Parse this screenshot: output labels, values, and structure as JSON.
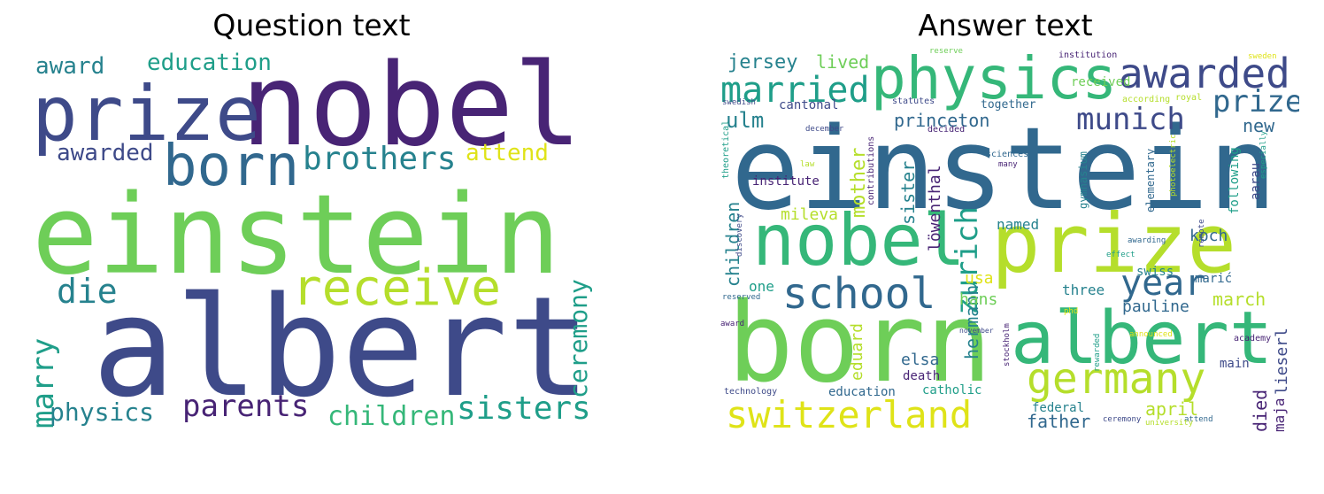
{
  "panels": {
    "question": {
      "title": "Question text"
    },
    "answer": {
      "title": "Answer text"
    }
  },
  "palette": {
    "dark_purple": "#482475",
    "blue_violet": "#3e4a89",
    "steel_blue": "#31688e",
    "teal": "#26828e",
    "sea_green": "#1f9e89",
    "green": "#35b779",
    "light_green": "#6ece58",
    "lime": "#b5de2b",
    "yellow": "#dfe318"
  },
  "question_words": [
    "nobel",
    "prize",
    "einstein",
    "albert",
    "born",
    "brothers",
    "receive",
    "die",
    "marry",
    "physics",
    "parents",
    "children",
    "sisters",
    "ceremony",
    "attend",
    "awarded",
    "award",
    "education"
  ],
  "answer_words": [
    "einstein",
    "born",
    "albert",
    "nobel",
    "prize",
    "physics",
    "awarded",
    "married",
    "school",
    "germany",
    "switzerland",
    "zurich",
    "munich",
    "year",
    "prize",
    "jersey",
    "lived",
    "ulm",
    "princeton",
    "new",
    "mother",
    "sister",
    "löwenthal",
    "hermann",
    "institute",
    "mileva",
    "children",
    "one",
    "hans",
    "usa",
    "named",
    "koch",
    "three",
    "pauline",
    "march",
    "marić",
    "swiss",
    "elementary",
    "gymnasium",
    "following",
    "aarau",
    "died",
    "lieserl",
    "maja",
    "april",
    "father",
    "elsa",
    "death",
    "eduard",
    "education",
    "catholic",
    "federal",
    "technology",
    "main",
    "cantonal",
    "statutes",
    "together",
    "received",
    "institution",
    "reserve",
    "sweden",
    "royal",
    "according",
    "swedish",
    "december",
    "theoretical",
    "law",
    "discovery",
    "contributions",
    "decided",
    "sciences",
    "many",
    "photoelectric",
    "especially",
    "effect",
    "remote",
    "awarding",
    "reserved",
    "award",
    "november",
    "phd",
    "announced",
    "rewarded",
    "academy",
    "stockholm",
    "ceremony",
    "attend",
    "university"
  ]
}
